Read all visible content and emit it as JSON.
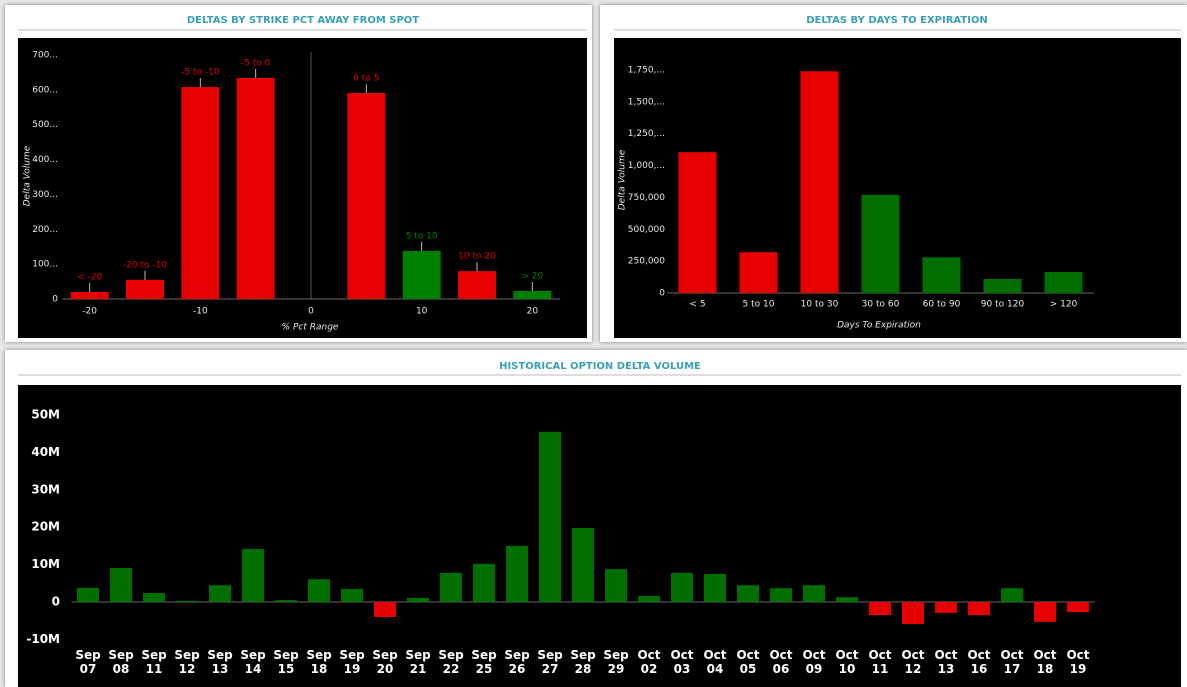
{
  "chart_data": [
    {
      "type": "bar",
      "title": "DELTAS BY STRIKE PCT AWAY FROM SPOT",
      "x": [
        -20,
        -15,
        -10,
        -5,
        5,
        10,
        15,
        20
      ],
      "categories": [
        "< -20",
        "-20 to -10",
        "-5 to -10",
        "-5 to 0",
        "0 to 5",
        "5 to 10",
        "10 to 20",
        "> 20"
      ],
      "values": [
        20,
        55,
        608,
        634,
        591,
        138,
        80,
        23
      ],
      "colors": [
        "#e60000",
        "#e60000",
        "#e60000",
        "#e60000",
        "#e60000",
        "#008000",
        "#e60000",
        "#008000"
      ],
      "xlim": [
        -22.5,
        22.5
      ],
      "xticks": [
        -20,
        -10,
        0,
        10,
        20
      ],
      "ylim": [
        0,
        700
      ],
      "yticks": [
        0,
        {
          "value": 100,
          "label": "100..."
        },
        {
          "value": 200,
          "label": "200..."
        },
        {
          "value": 300,
          "label": "300..."
        },
        {
          "value": 400,
          "label": "400..."
        },
        {
          "value": 500,
          "label": "500..."
        },
        {
          "value": 600,
          "label": "600..."
        },
        {
          "value": 700,
          "label": "700..."
        }
      ],
      "xlabel": "% Pct Range",
      "ylabel": "Delta Volume"
    },
    {
      "type": "bar",
      "title": "DELTAS BY DAYS TO EXPIRATION",
      "categories": [
        "< 5",
        "5 to 10",
        "10 to 30",
        "30 to 60",
        "60 to 90",
        "90 to 120",
        "> 120"
      ],
      "values": [
        1105000,
        320000,
        1740000,
        770000,
        280000,
        110000,
        165000
      ],
      "colors": [
        "#e60000",
        "#e60000",
        "#e60000",
        "#006f00",
        "#006f00",
        "#006f00",
        "#006f00"
      ],
      "ylim": [
        0,
        1750000
      ],
      "yticks": [
        0,
        {
          "value": 250000,
          "label": "250,000"
        },
        {
          "value": 500000,
          "label": "500,000"
        },
        {
          "value": 750000,
          "label": "750,000"
        },
        {
          "value": 1000000,
          "label": "1,000,..."
        },
        {
          "value": 1250000,
          "label": "1,250,..."
        },
        {
          "value": 1500000,
          "label": "1,500,..."
        },
        {
          "value": 1750000,
          "label": "1,750,..."
        }
      ],
      "xlabel": "Days To Expiration",
      "ylabel": "Delta Volume"
    },
    {
      "type": "bar",
      "title": "HISTORICAL OPTION DELTA VOLUME",
      "categories": [
        "Sep 07",
        "Sep 08",
        "Sep 11",
        "Sep 12",
        "Sep 13",
        "Sep 14",
        "Sep 15",
        "Sep 18",
        "Sep 19",
        "Sep 20",
        "Sep 21",
        "Sep 22",
        "Sep 25",
        "Sep 26",
        "Sep 27",
        "Sep 28",
        "Sep 29",
        "Oct 02",
        "Oct 03",
        "Oct 04",
        "Oct 05",
        "Oct 06",
        "Oct 09",
        "Oct 10",
        "Oct 11",
        "Oct 12",
        "Oct 13",
        "Oct 16",
        "Oct 17",
        "Oct 18",
        "Oct 19"
      ],
      "values": [
        3800000,
        9100000,
        2400000,
        300000,
        4500000,
        14200000,
        500000,
        6100000,
        3500000,
        -4000000,
        1100000,
        7800000,
        10200000,
        15000000,
        45500000,
        19800000,
        8800000,
        1600000,
        7800000,
        7500000,
        4500000,
        3700000,
        4500000,
        1300000,
        -3500000,
        -5900000,
        -2900000,
        -3500000,
        3700000,
        -5300000,
        -2700000
      ],
      "positive_color": "#006f00",
      "negative_color": "#e60000",
      "ylim": [
        -12000000,
        52000000
      ],
      "yticks": [
        {
          "value": -10000000,
          "label": "-10M"
        },
        0,
        {
          "value": 10000000,
          "label": "10M"
        },
        {
          "value": 20000000,
          "label": "20M"
        },
        {
          "value": 30000000,
          "label": "30M"
        },
        {
          "value": 40000000,
          "label": "40M"
        },
        {
          "value": 50000000,
          "label": "50M"
        }
      ]
    }
  ]
}
